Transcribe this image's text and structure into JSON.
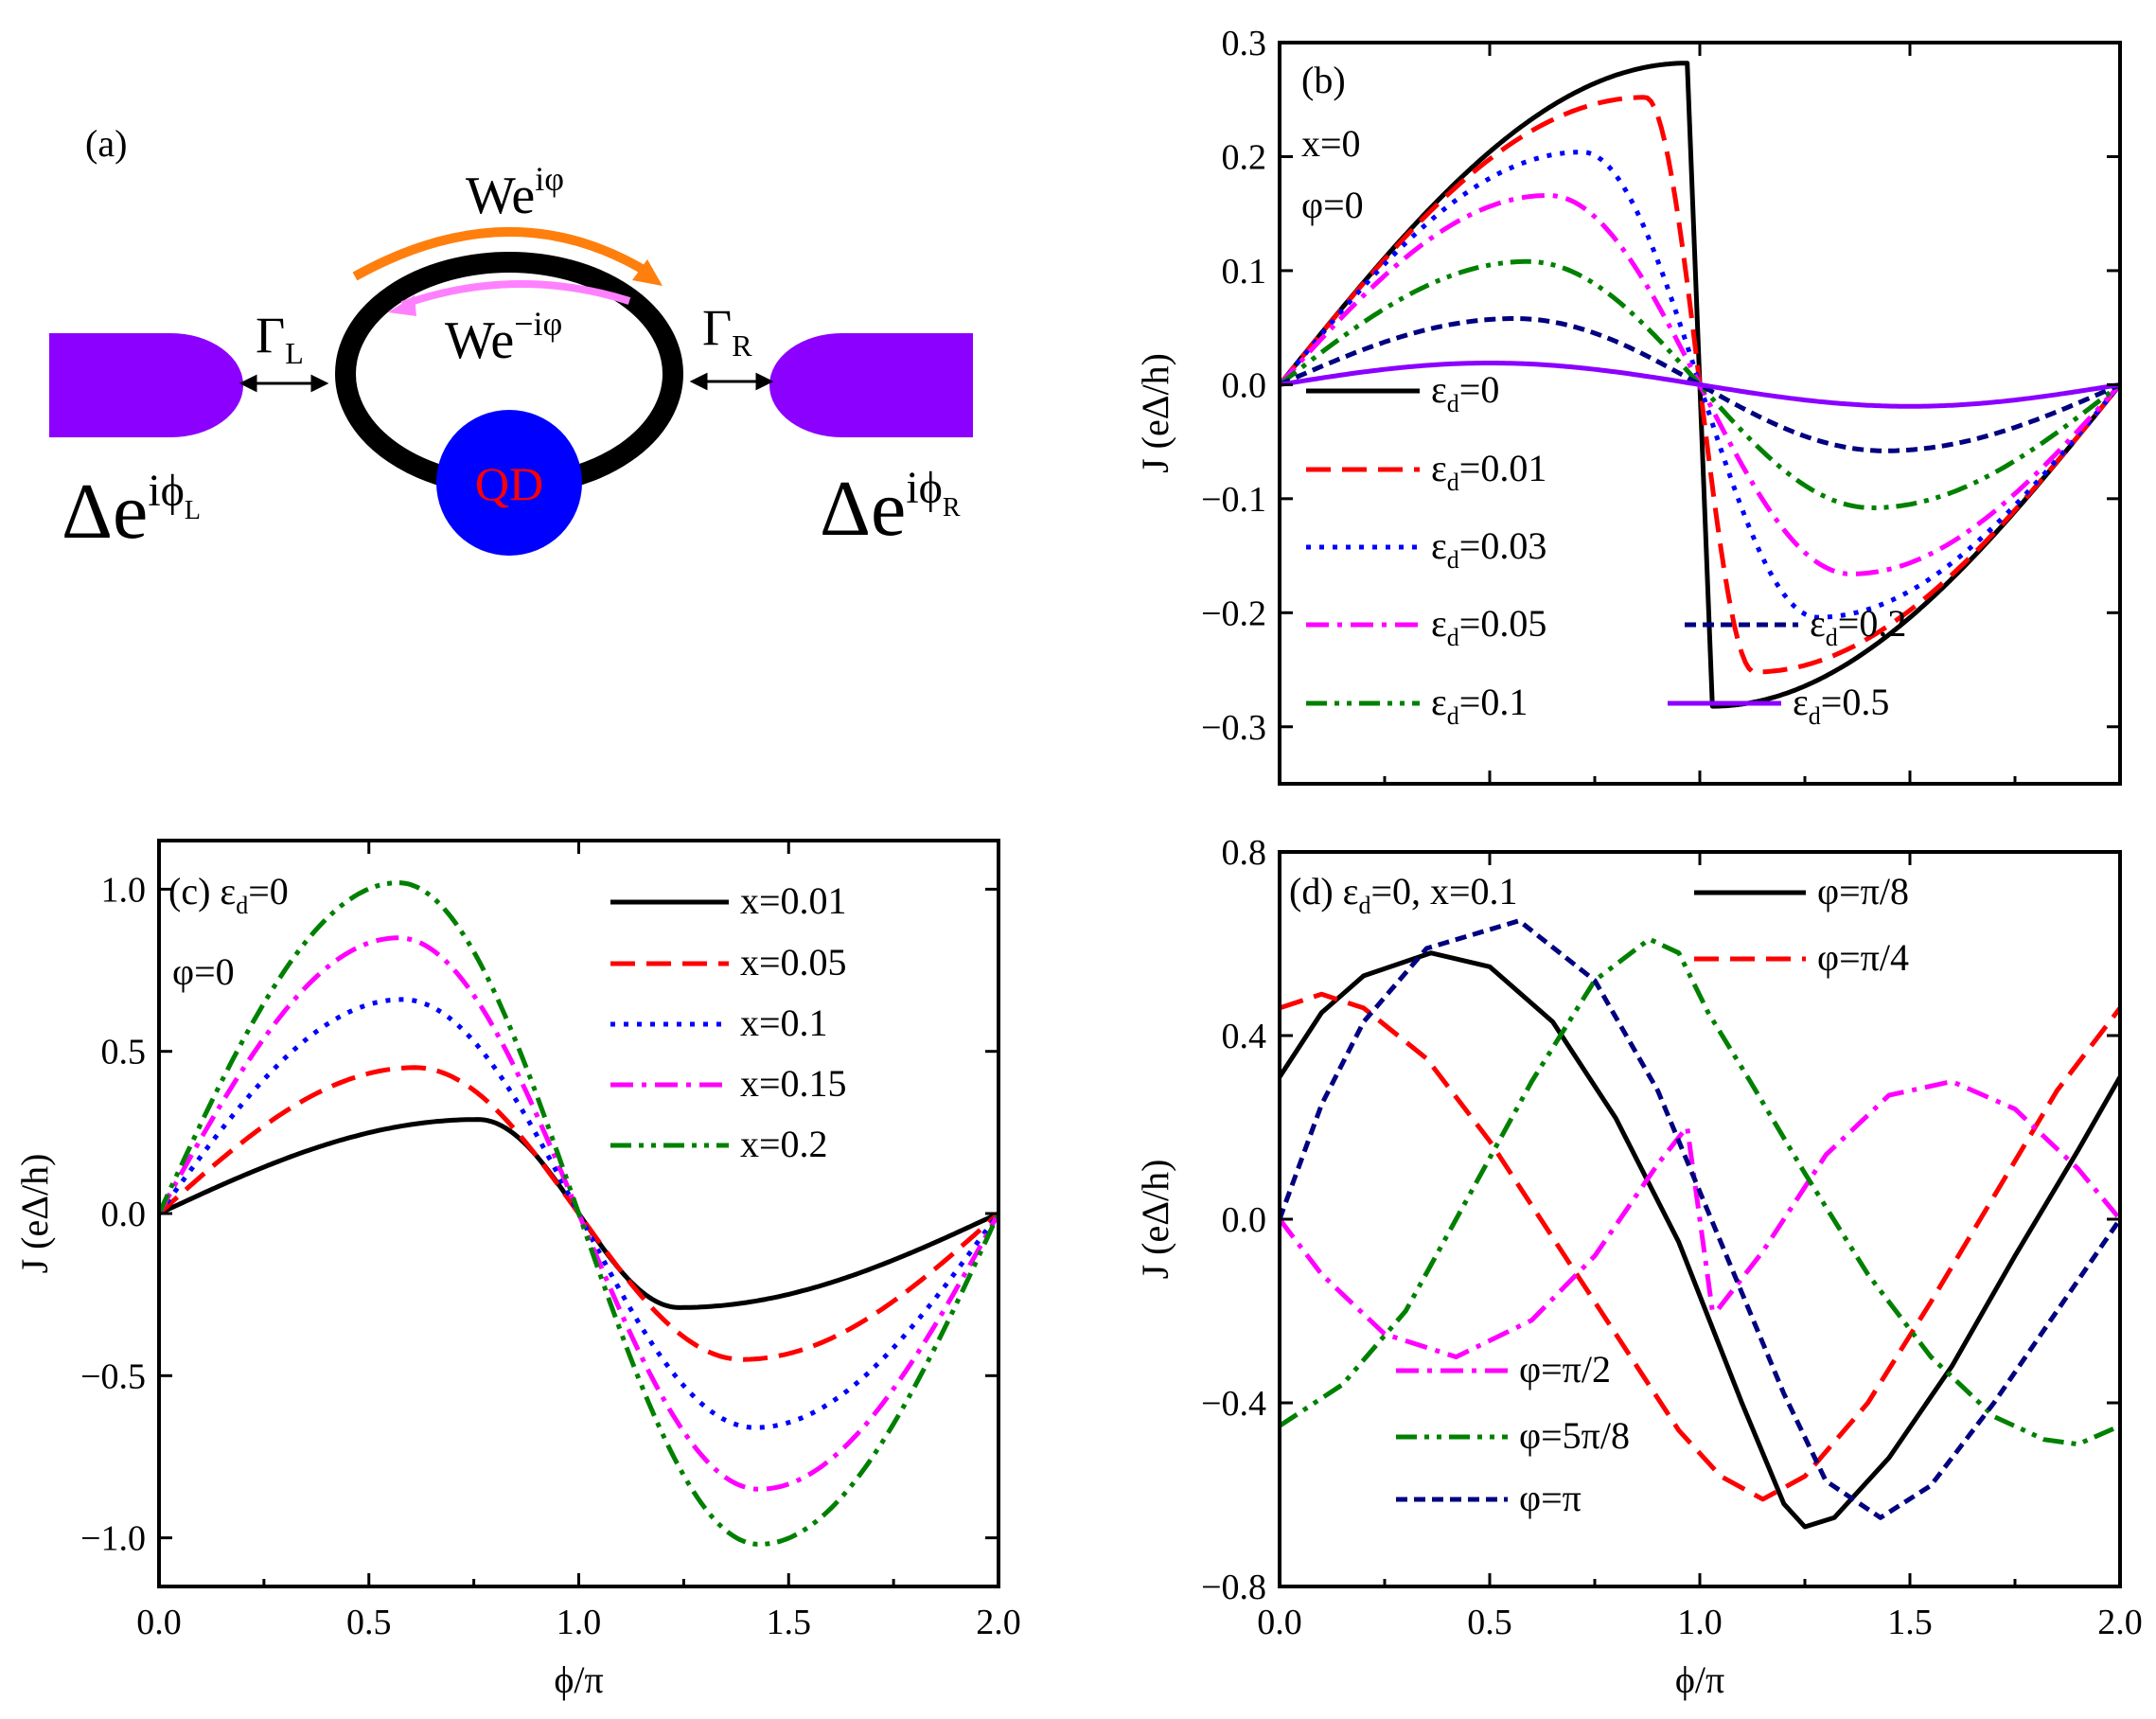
{
  "schematic": {
    "label": "(a)",
    "hop_forward": "We",
    "hop_forward_sup": "iφ",
    "hop_backward": "We",
    "hop_backward_sup": "−iφ",
    "gamma_left": "Γ",
    "gamma_left_sub": "L",
    "gamma_right": "Γ",
    "gamma_right_sub": "R",
    "dot": "QD",
    "lead_left": "Δe",
    "lead_left_sup": "iϕ",
    "lead_left_sub": "L",
    "lead_right": "Δe",
    "lead_right_sup": "iϕ",
    "lead_right_sub": "R",
    "colors": {
      "lead": "#8b00ff",
      "ring": "#000000",
      "dot": "#0000ff",
      "dot_text": "#ff0000",
      "arrow_forward": "#ff7f0e",
      "arrow_backward": "#ff80ff"
    }
  },
  "chart_data": [
    {
      "id": "b",
      "type": "line",
      "label": "(b)",
      "annotations": [
        "x=0",
        "φ=0"
      ],
      "xlabel": "",
      "ylabel": "J (eΔ/h)",
      "xlim": [
        0,
        2
      ],
      "ylim": [
        -0.35,
        0.3
      ],
      "xticks": [
        0,
        0.5,
        1.0,
        1.5,
        2.0
      ],
      "yticks": [
        0.3,
        0.2,
        0.1,
        0.0,
        -0.1,
        -0.2,
        -0.3
      ],
      "ytick_labels": [
        "0.3",
        "0.2",
        "0.1",
        "0.0",
        "−0.1",
        "−0.2",
        "−0.3"
      ],
      "series": [
        {
          "name": "ε",
          "sub": "d",
          "tail": "=0",
          "color": "#000000",
          "dash": "none",
          "amp": 0.282,
          "shape": "sawtooth",
          "peak": 0.97
        },
        {
          "name": "ε",
          "sub": "d",
          "tail": "=0.01",
          "color": "#ff0000",
          "dash": "dashed",
          "amp": 0.252,
          "shape": "skew",
          "peak": 0.87
        },
        {
          "name": "ε",
          "sub": "d",
          "tail": "=0.03",
          "color": "#0000ff",
          "dash": "dotted",
          "amp": 0.204,
          "shape": "skew",
          "peak": 0.72
        },
        {
          "name": "ε",
          "sub": "d",
          "tail": "=0.05",
          "color": "#ff00ff",
          "dash": "dashdot",
          "amp": 0.166,
          "shape": "skew",
          "peak": 0.64
        },
        {
          "name": "ε",
          "sub": "d",
          "tail": "=0.1",
          "color": "#008000",
          "dash": "dashdotdot",
          "amp": 0.108,
          "shape": "skew",
          "peak": 0.59
        },
        {
          "name": "ε",
          "sub": "d",
          "tail": "=0.2",
          "color": "#000080",
          "dash": "shortdash",
          "amp": 0.058,
          "shape": "skew",
          "peak": 0.56
        },
        {
          "name": "ε",
          "sub": "d",
          "tail": "=0.5",
          "color": "#8b00ff",
          "dash": "none",
          "amp": 0.019,
          "shape": "skew",
          "peak": 0.5
        }
      ]
    },
    {
      "id": "c",
      "type": "line",
      "label": "(c) ε",
      "label_sub": "d",
      "label_tail": "=0",
      "annotations": [
        "φ=0"
      ],
      "xlabel": "ϕ/π",
      "ylabel": "J (eΔ/h)",
      "xlim": [
        0,
        2
      ],
      "ylim": [
        -1.15,
        1.15
      ],
      "xticks": [
        0,
        0.5,
        1.0,
        1.5,
        2.0
      ],
      "xtick_labels": [
        "0.0",
        "0.5",
        "1.0",
        "1.5",
        "2.0"
      ],
      "yticks": [
        1.0,
        0.5,
        0.0,
        -0.5,
        -1.0
      ],
      "ytick_labels": [
        "1.0",
        "0.5",
        "0.0",
        "−0.5",
        "−1.0"
      ],
      "series": [
        {
          "name": "x=0.01",
          "color": "#000000",
          "dash": "none",
          "amp": 0.29,
          "shape": "skew",
          "peak": 0.76
        },
        {
          "name": "x=0.05",
          "color": "#ff0000",
          "dash": "dashed",
          "amp": 0.45,
          "shape": "skew",
          "peak": 0.61
        },
        {
          "name": "x=0.1",
          "color": "#0000ff",
          "dash": "dotted",
          "amp": 0.66,
          "shape": "skew",
          "peak": 0.58
        },
        {
          "name": "x=0.15",
          "color": "#ff00ff",
          "dash": "dashdot",
          "amp": 0.85,
          "shape": "skew",
          "peak": 0.57
        },
        {
          "name": "x=0.2",
          "color": "#008000",
          "dash": "dashdotdot",
          "amp": 1.02,
          "shape": "skew",
          "peak": 0.57
        }
      ]
    },
    {
      "id": "d",
      "type": "line",
      "label": "(d) ε",
      "label_sub": "d",
      "label_tail": "=0, x=0.1",
      "xlabel": "ϕ/π",
      "ylabel": "J (eΔ/h)",
      "xlim": [
        0,
        2
      ],
      "ylim": [
        -0.8,
        0.8
      ],
      "xticks": [
        0,
        0.5,
        1.0,
        1.5,
        2.0
      ],
      "xtick_labels": [
        "0.0",
        "0.5",
        "1.0",
        "1.5",
        "2.0"
      ],
      "yticks": [
        0.8,
        0.4,
        0.0,
        -0.4,
        -0.8
      ],
      "ytick_labels": [
        "0.8",
        "0.4",
        "0.0",
        "−0.4",
        "−0.8"
      ],
      "series": [
        {
          "name": "φ=π/8",
          "color": "#000000",
          "dash": "none",
          "points": [
            [
              0,
              0.31
            ],
            [
              0.1,
              0.45
            ],
            [
              0.2,
              0.53
            ],
            [
              0.36,
              0.58
            ],
            [
              0.5,
              0.55
            ],
            [
              0.65,
              0.43
            ],
            [
              0.8,
              0.22
            ],
            [
              0.95,
              -0.05
            ],
            [
              1.1,
              -0.4
            ],
            [
              1.2,
              -0.62
            ],
            [
              1.25,
              -0.67
            ],
            [
              1.32,
              -0.65
            ],
            [
              1.45,
              -0.52
            ],
            [
              1.6,
              -0.32
            ],
            [
              1.75,
              -0.08
            ],
            [
              1.9,
              0.15
            ],
            [
              2.0,
              0.31
            ]
          ]
        },
        {
          "name": "φ=π/4",
          "color": "#ff0000",
          "dash": "dashed",
          "points": [
            [
              0,
              0.46
            ],
            [
              0.1,
              0.49
            ],
            [
              0.2,
              0.46
            ],
            [
              0.35,
              0.35
            ],
            [
              0.5,
              0.17
            ],
            [
              0.65,
              -0.04
            ],
            [
              0.8,
              -0.25
            ],
            [
              0.95,
              -0.46
            ],
            [
              1.05,
              -0.56
            ],
            [
              1.15,
              -0.61
            ],
            [
              1.25,
              -0.56
            ],
            [
              1.4,
              -0.4
            ],
            [
              1.55,
              -0.18
            ],
            [
              1.7,
              0.05
            ],
            [
              1.85,
              0.28
            ],
            [
              2.0,
              0.46
            ]
          ]
        },
        {
          "name": "φ=π/2",
          "color": "#ff00ff",
          "dash": "dashdot",
          "points": [
            [
              0,
              0.0
            ],
            [
              0.1,
              -0.12
            ],
            [
              0.25,
              -0.25
            ],
            [
              0.42,
              -0.3
            ],
            [
              0.6,
              -0.22
            ],
            [
              0.75,
              -0.08
            ],
            [
              0.9,
              0.12
            ],
            [
              0.96,
              0.19
            ],
            [
              0.97,
              0.2
            ],
            [
              1.03,
              -0.2
            ],
            [
              1.04,
              -0.2
            ],
            [
              1.15,
              -0.07
            ],
            [
              1.3,
              0.14
            ],
            [
              1.45,
              0.27
            ],
            [
              1.6,
              0.3
            ],
            [
              1.75,
              0.24
            ],
            [
              1.9,
              0.11
            ],
            [
              2.0,
              0.0
            ]
          ]
        },
        {
          "name": "φ=5π/8",
          "color": "#008000",
          "dash": "dashdotdot",
          "points": [
            [
              0,
              -0.45
            ],
            [
              0.15,
              -0.36
            ],
            [
              0.3,
              -0.2
            ],
            [
              0.45,
              0.05
            ],
            [
              0.6,
              0.3
            ],
            [
              0.75,
              0.52
            ],
            [
              0.88,
              0.61
            ],
            [
              0.95,
              0.58
            ],
            [
              1.02,
              0.45
            ],
            [
              1.12,
              0.3
            ],
            [
              1.25,
              0.1
            ],
            [
              1.4,
              -0.12
            ],
            [
              1.55,
              -0.3
            ],
            [
              1.7,
              -0.43
            ],
            [
              1.82,
              -0.48
            ],
            [
              1.9,
              -0.49
            ],
            [
              2.0,
              -0.45
            ]
          ]
        },
        {
          "name": "φ=π",
          "color": "#000080",
          "dash": "shortdash",
          "points": [
            [
              0,
              0.0
            ],
            [
              0.1,
              0.25
            ],
            [
              0.2,
              0.43
            ],
            [
              0.35,
              0.59
            ],
            [
              0.57,
              0.65
            ],
            [
              0.75,
              0.52
            ],
            [
              0.9,
              0.28
            ],
            [
              1.05,
              -0.05
            ],
            [
              1.2,
              -0.38
            ],
            [
              1.3,
              -0.57
            ],
            [
              1.43,
              -0.65
            ],
            [
              1.55,
              -0.58
            ],
            [
              1.7,
              -0.4
            ],
            [
              1.85,
              -0.2
            ],
            [
              2.0,
              0.0
            ]
          ]
        }
      ]
    }
  ]
}
